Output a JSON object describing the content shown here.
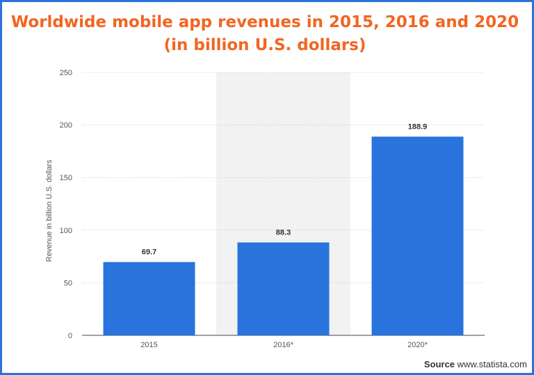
{
  "chart_data": {
    "type": "bar",
    "title": "Worldwide mobile app revenues in 2015, 2016 and 2020",
    "subtitle": "(in billion U.S. dollars)",
    "categories": [
      "2015",
      "2016*",
      "2020*"
    ],
    "values": [
      69.7,
      88.3,
      188.9
    ],
    "value_labels": [
      "69.7",
      "88.3",
      "188.9"
    ],
    "ylabel": "Revenue in billion U.S. dollars",
    "xlabel": "",
    "ylim": [
      0,
      250
    ],
    "yticks": [
      0,
      50,
      100,
      150,
      200,
      250
    ],
    "grid": true,
    "highlighted_category": "2016*",
    "bar_color": "#2874dc",
    "highlight_band_color": "#f2f2f2"
  },
  "title_color": "#f26522",
  "frame_color": "#2a74d9",
  "source": {
    "label": "Source",
    "site": "www.statista.com"
  }
}
